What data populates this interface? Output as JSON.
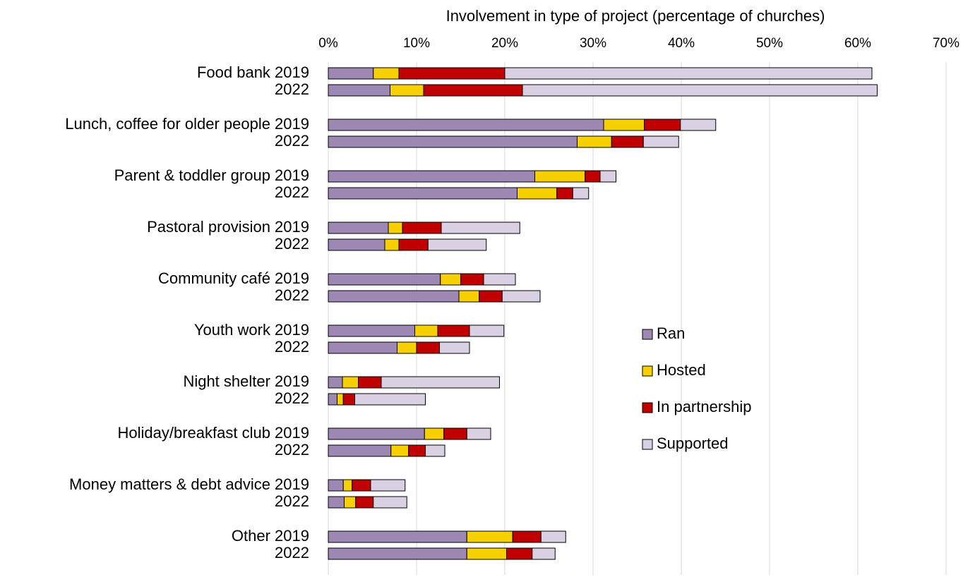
{
  "chart_data": {
    "type": "stacked-barh",
    "x_label": "Involvement in type of project (percentage of churches)",
    "categories": [
      "Food bank 2019",
      "2022",
      "Lunch, coffee for older people 2019",
      "2022",
      "Parent & toddler group 2019",
      "2022",
      "Pastoral provision 2019",
      "2022",
      "Community café 2019",
      "2022",
      "Youth work 2019",
      "2022",
      "Night shelter 2019",
      "2022",
      "Holiday/breakfast club 2019",
      "2022",
      "Money matters & debt advice 2019",
      "2022",
      "Other 2019",
      "2022"
    ],
    "series": [
      {
        "name": "Ran",
        "color": "#9d87b3",
        "values": [
          5.1,
          7.0,
          31.2,
          28.2,
          23.4,
          21.4,
          6.8,
          6.4,
          12.7,
          14.8,
          9.8,
          7.8,
          1.6,
          1.0,
          10.9,
          7.1,
          1.7,
          1.8,
          15.7,
          15.7
        ]
      },
      {
        "name": "Hosted",
        "color": "#f6d000",
        "values": [
          2.9,
          3.8,
          4.6,
          3.9,
          5.7,
          4.5,
          1.6,
          1.6,
          2.3,
          2.3,
          2.6,
          2.2,
          1.8,
          0.7,
          2.2,
          2.0,
          1.0,
          1.3,
          5.2,
          4.5
        ]
      },
      {
        "name": "In partnership",
        "color": "#c00000",
        "values": [
          12.0,
          11.2,
          4.1,
          3.6,
          1.7,
          1.8,
          4.4,
          3.3,
          2.6,
          2.6,
          3.6,
          2.6,
          2.6,
          1.3,
          2.6,
          1.9,
          2.1,
          2.0,
          3.2,
          2.9
        ]
      },
      {
        "name": "Supported",
        "color": "#dad0e4",
        "values": [
          41.6,
          40.2,
          4.0,
          4.0,
          1.8,
          1.8,
          8.9,
          6.6,
          3.6,
          4.3,
          3.9,
          3.4,
          13.4,
          8.0,
          2.7,
          2.2,
          3.9,
          3.8,
          2.8,
          2.6
        ]
      }
    ],
    "xlim": [
      0,
      70
    ],
    "xticks": [
      {
        "value": 0,
        "label": "0%"
      },
      {
        "value": 10,
        "label": "10%"
      },
      {
        "value": 20,
        "label": "20%"
      },
      {
        "value": 30,
        "label": "30%"
      },
      {
        "value": 40,
        "label": "40%"
      },
      {
        "value": 50,
        "label": "50%"
      },
      {
        "value": 60,
        "label": "60%"
      },
      {
        "value": 70,
        "label": "70%"
      }
    ],
    "grid": true,
    "legend_position": "center-right"
  }
}
